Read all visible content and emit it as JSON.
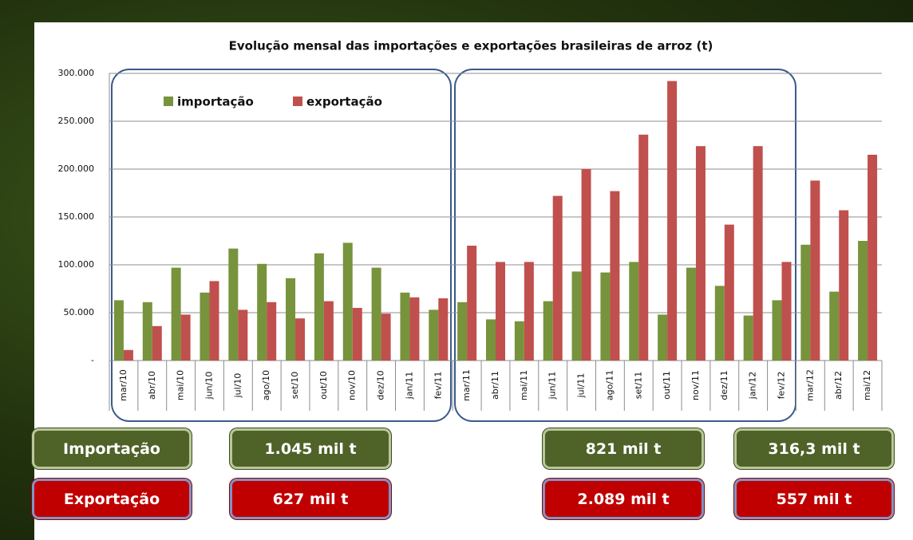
{
  "chart_data": {
    "type": "bar",
    "title": "Evolução mensal das importações  e exportações brasileiras de arroz (t)",
    "categories": [
      "mar/10",
      "abr/10",
      "mai/10",
      "jun/10",
      "jul/10",
      "ago/10",
      "set/10",
      "out/10",
      "nov/10",
      "dez/10",
      "jan/11",
      "fev/11",
      "mar/11",
      "abr/11",
      "mai/11",
      "jun/11",
      "jul/11",
      "ago/11",
      "set/11",
      "out/11",
      "nov/11",
      "dez/11",
      "jan/12",
      "fev/12",
      "mar/12",
      "abr/12",
      "mai/12"
    ],
    "series": [
      {
        "name": "importação",
        "color": "#77933c",
        "values": [
          63000,
          61000,
          97000,
          71000,
          117000,
          101000,
          86000,
          112000,
          123000,
          97000,
          71000,
          53000,
          61000,
          43000,
          41000,
          62000,
          93000,
          92000,
          103000,
          48000,
          97000,
          78000,
          47000,
          63000,
          121000,
          72000,
          125000
        ]
      },
      {
        "name": "exportação",
        "color": "#c0504d",
        "values": [
          11000,
          36000,
          48000,
          83000,
          53000,
          61000,
          44000,
          62000,
          55000,
          49000,
          66000,
          65000,
          120000,
          103000,
          103000,
          172000,
          200000,
          177000,
          236000,
          292000,
          224000,
          142000,
          224000,
          103000,
          188000,
          157000,
          215000
        ]
      }
    ],
    "ylim": [
      0,
      300000
    ],
    "yticks": [
      {
        "value": 0,
        "label": "-"
      },
      {
        "value": 50000,
        "label": "50.000"
      },
      {
        "value": 100000,
        "label": "100.000"
      },
      {
        "value": 150000,
        "label": "150.000"
      },
      {
        "value": 200000,
        "label": "200.000"
      },
      {
        "value": 250000,
        "label": "250.000"
      },
      {
        "value": 300000,
        "label": "300.000"
      }
    ],
    "grid": true
  },
  "summary": {
    "rows": [
      {
        "label": "Importação",
        "values": [
          "1.045 mil t",
          "821 mil t",
          "316,3 mil t"
        ]
      },
      {
        "label": "Exportação",
        "values": [
          "627 mil t",
          "2.089 mil t",
          "557 mil t"
        ]
      }
    ]
  }
}
